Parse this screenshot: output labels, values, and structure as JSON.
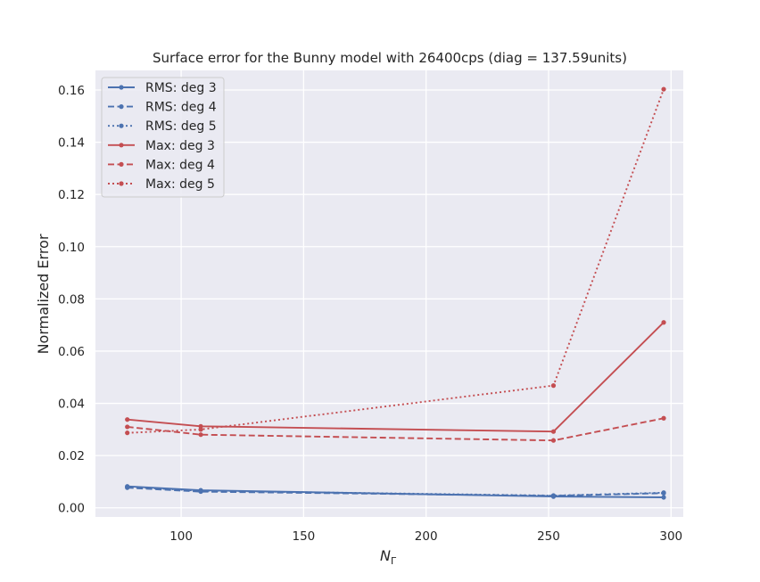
{
  "chart_data": {
    "type": "line",
    "title": "Surface error for the Bunny model with 26400cps (diag = 137.59units)",
    "xlabel_main": "N",
    "xlabel_sub": "Γ",
    "ylabel": "Normalized Error",
    "xlim": [
      65,
      305
    ],
    "ylim": [
      -0.0035,
      0.1675
    ],
    "xticks": [
      100,
      150,
      200,
      250,
      300
    ],
    "yticks": [
      0.0,
      0.02,
      0.04,
      0.06,
      0.08,
      0.1,
      0.12,
      0.14,
      0.16
    ],
    "ytick_labels": [
      "0.00",
      "0.02",
      "0.04",
      "0.06",
      "0.08",
      "0.10",
      "0.12",
      "0.14",
      "0.16"
    ],
    "grid": true,
    "legend_position": "upper-left",
    "series": [
      {
        "name": "RMS: deg 3",
        "color": "#4c72b0",
        "dash": "solid",
        "x": [
          78,
          108,
          252,
          297
        ],
        "y": [
          0.0082,
          0.0067,
          0.0043,
          0.004
        ]
      },
      {
        "name": "RMS: deg 4",
        "color": "#4c72b0",
        "dash": "dashed",
        "x": [
          78,
          108,
          252,
          297
        ],
        "y": [
          0.0077,
          0.0062,
          0.0046,
          0.0056
        ]
      },
      {
        "name": "RMS: deg 5",
        "color": "#4c72b0",
        "dash": "dotted",
        "x": [
          78,
          108,
          252,
          297
        ],
        "y": [
          0.008,
          0.0065,
          0.0047,
          0.0058
        ]
      },
      {
        "name": "Max: deg 3",
        "color": "#c44e52",
        "dash": "solid",
        "x": [
          78,
          108,
          252,
          297
        ],
        "y": [
          0.0338,
          0.0312,
          0.0292,
          0.071
        ]
      },
      {
        "name": "Max: deg 4",
        "color": "#c44e52",
        "dash": "dashed",
        "x": [
          78,
          108,
          252,
          297
        ],
        "y": [
          0.031,
          0.028,
          0.0258,
          0.0343
        ]
      },
      {
        "name": "Max: deg 5",
        "color": "#c44e52",
        "dash": "dotted",
        "x": [
          78,
          108,
          252,
          297
        ],
        "y": [
          0.0287,
          0.03,
          0.0468,
          0.1603
        ]
      }
    ]
  }
}
